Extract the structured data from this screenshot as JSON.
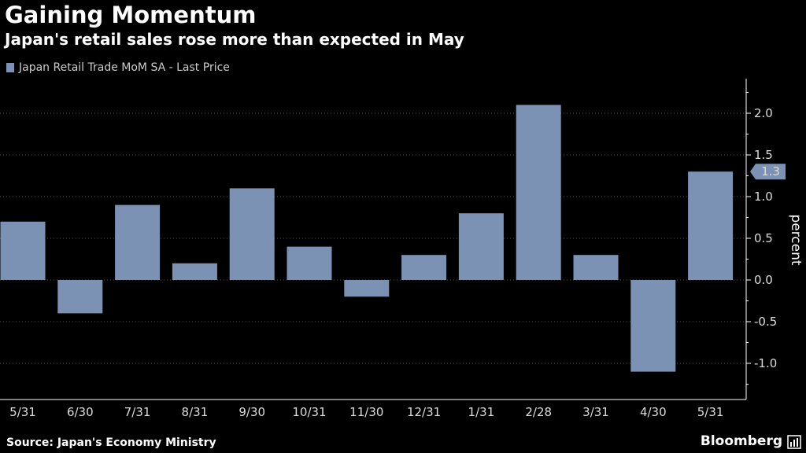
{
  "header": {
    "title": "Gaining Momentum",
    "subtitle": "Japan's retail sales rose more than expected in May"
  },
  "legend": {
    "label": "Japan Retail Trade MoM SA - Last Price"
  },
  "footer": {
    "source": "Source: Japan's Economy Ministry",
    "brand": "Bloomberg"
  },
  "colors": {
    "bar": "#7b92b5",
    "background": "#000000",
    "axis": "#ffffff"
  },
  "chart_data": {
    "type": "bar",
    "title": "Gaining Momentum",
    "subtitle": "Japan's retail sales rose more than expected in May",
    "categories": [
      "5/31",
      "6/30",
      "7/31",
      "8/31",
      "9/30",
      "10/31",
      "11/30",
      "12/31",
      "1/31",
      "2/28",
      "3/31",
      "4/30",
      "5/31"
    ],
    "series": [
      {
        "name": "Japan Retail Trade MoM SA - Last Price",
        "values": [
          0.7,
          -0.4,
          0.9,
          0.2,
          1.1,
          0.4,
          -0.2,
          0.3,
          0.8,
          2.1,
          0.3,
          -1.1,
          1.3
        ]
      }
    ],
    "ylabel": "percent",
    "ylim": [
      -1.4,
      2.4
    ],
    "yticks": [
      -1.0,
      -0.5,
      0.0,
      0.5,
      1.0,
      1.5,
      2.0
    ],
    "ytick_labels": [
      "-1.0",
      "-0.5",
      "0.0",
      "0.5",
      "1.0",
      "1.5",
      "2.0"
    ],
    "last_value_label": "1.3",
    "grid": true
  }
}
